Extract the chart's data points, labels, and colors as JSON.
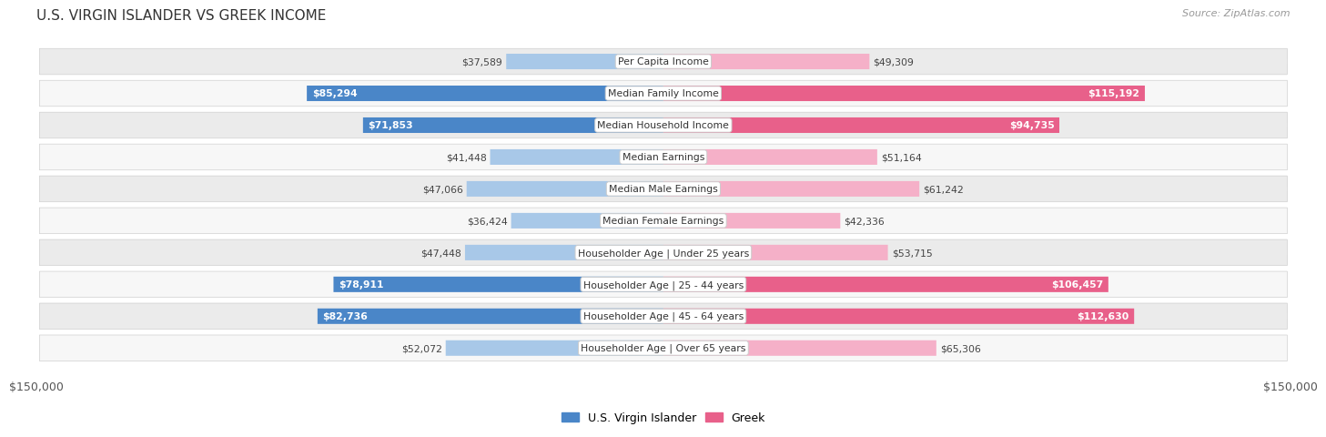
{
  "title": "U.S. VIRGIN ISLANDER VS GREEK INCOME",
  "source": "Source: ZipAtlas.com",
  "categories": [
    "Per Capita Income",
    "Median Family Income",
    "Median Household Income",
    "Median Earnings",
    "Median Male Earnings",
    "Median Female Earnings",
    "Householder Age | Under 25 years",
    "Householder Age | 25 - 44 years",
    "Householder Age | 45 - 64 years",
    "Householder Age | Over 65 years"
  ],
  "left_values": [
    37589,
    85294,
    71853,
    41448,
    47066,
    36424,
    47448,
    78911,
    82736,
    52072
  ],
  "right_values": [
    49309,
    115192,
    94735,
    51164,
    61242,
    42336,
    53715,
    106457,
    112630,
    65306
  ],
  "left_labels": [
    "$37,589",
    "$85,294",
    "$71,853",
    "$41,448",
    "$47,066",
    "$36,424",
    "$47,448",
    "$78,911",
    "$82,736",
    "$52,072"
  ],
  "right_labels": [
    "$49,309",
    "$115,192",
    "$94,735",
    "$51,164",
    "$61,242",
    "$42,336",
    "$53,715",
    "$106,457",
    "$112,630",
    "$65,306"
  ],
  "max_value": 150000,
  "left_color_strong": "#4a86c8",
  "left_color_light": "#a8c8e8",
  "right_color_strong": "#e8608a",
  "right_color_light": "#f5b0c8",
  "strong_threshold": 70000,
  "background_color": "#ffffff",
  "row_bg_even": "#ebebeb",
  "row_bg_odd": "#f7f7f7",
  "legend_left": "U.S. Virgin Islander",
  "legend_right": "Greek",
  "xlabel_val": "$150,000"
}
